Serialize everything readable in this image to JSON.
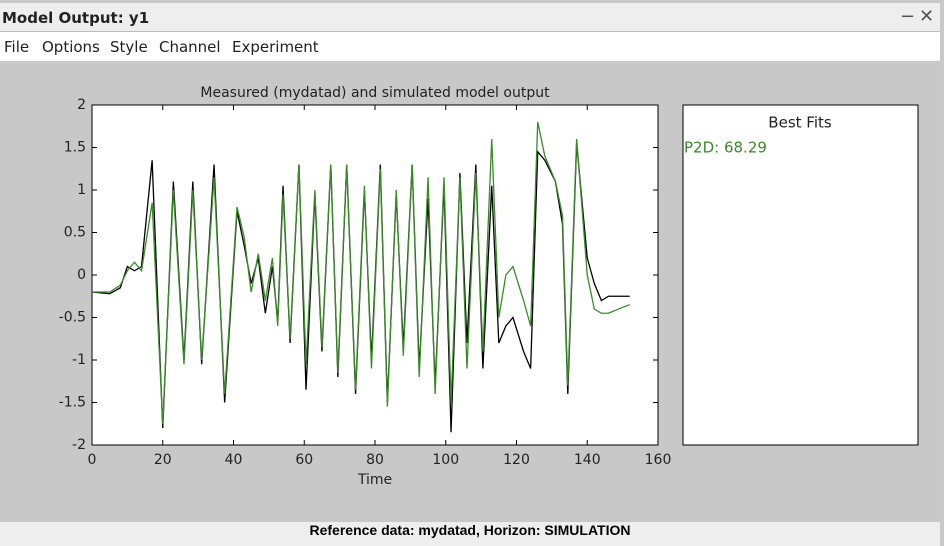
{
  "window": {
    "title": "Model Output: y1",
    "menu": [
      "File",
      "Options",
      "Style",
      "Channel",
      "Experiment"
    ]
  },
  "chart_data": {
    "type": "line",
    "title": "Measured (mydatad) and simulated model output",
    "xlabel": "Time",
    "x": [
      0,
      5,
      8,
      10,
      12,
      14,
      17,
      20,
      23,
      26,
      28.5,
      31,
      34.5,
      37.5,
      41,
      43,
      45,
      47,
      49,
      51,
      52.5,
      54,
      56,
      58.5,
      60.5,
      63,
      65,
      67.5,
      69.5,
      72,
      74.5,
      77,
      79,
      81.5,
      83.5,
      86,
      88,
      90.5,
      92.5,
      95,
      97,
      99.5,
      101.5,
      104,
      106,
      108.5,
      110.5,
      113,
      115,
      117,
      119,
      122,
      124,
      126,
      128,
      131,
      133,
      134.5,
      137,
      140,
      142,
      144,
      146,
      150,
      152
    ],
    "series": [
      {
        "color": "#000000",
        "values": [
          -0.2,
          -0.22,
          -0.15,
          0.1,
          0.05,
          0.1,
          1.35,
          -1.8,
          1.1,
          -1.0,
          1.1,
          -1.05,
          1.3,
          -1.5,
          0.75,
          0.35,
          -0.1,
          0.2,
          -0.45,
          0.1,
          -0.55,
          1.05,
          -0.8,
          1.3,
          -1.35,
          0.95,
          -0.9,
          1.3,
          -1.2,
          1.3,
          -1.4,
          1.0,
          -1.0,
          1.3,
          -1.5,
          0.95,
          -0.85,
          1.3,
          -1.1,
          0.9,
          -1.3,
          1.05,
          -1.85,
          1.2,
          -0.8,
          1.3,
          -1.1,
          1.05,
          -0.8,
          -0.6,
          -0.5,
          -0.9,
          -1.1,
          1.45,
          1.35,
          1.1,
          0.6,
          -1.4,
          1.55,
          0.2,
          -0.1,
          -0.3,
          -0.25,
          -0.25,
          -0.25
        ]
      },
      {
        "color": "#3a8a2a",
        "values": [
          -0.2,
          -0.2,
          -0.12,
          0.05,
          0.15,
          0.05,
          0.85,
          -1.75,
          1.0,
          -1.05,
          1.0,
          -1.0,
          1.15,
          -1.4,
          0.8,
          0.45,
          -0.2,
          0.25,
          -0.3,
          0.2,
          -0.6,
          0.95,
          -0.75,
          1.3,
          -1.05,
          1.0,
          -0.85,
          1.3,
          -1.15,
          1.3,
          -1.35,
          1.05,
          -1.1,
          1.25,
          -1.55,
          1.0,
          -0.95,
          1.3,
          -1.2,
          1.15,
          -1.4,
          1.15,
          -1.5,
          1.15,
          -1.1,
          1.2,
          -0.9,
          1.6,
          -0.5,
          0.0,
          0.1,
          -0.3,
          -0.6,
          1.8,
          1.4,
          1.1,
          0.7,
          -1.3,
          1.6,
          0.0,
          -0.4,
          -0.45,
          -0.45,
          -0.38,
          -0.35
        ]
      }
    ],
    "xlim": [
      0,
      160
    ],
    "xticks": [
      0,
      20,
      40,
      60,
      80,
      100,
      120,
      140,
      160
    ],
    "ylim": [
      -2,
      2
    ],
    "yticks": [
      -2,
      -1.5,
      -1,
      -0.5,
      0,
      0.5,
      1,
      1.5,
      2
    ]
  },
  "fits": {
    "title": "Best Fits",
    "entries": [
      {
        "text": "P2D: 68.29",
        "color": "#3a8a2a"
      }
    ]
  },
  "status": "Reference data:  mydatad, Horizon: SIMULATION"
}
